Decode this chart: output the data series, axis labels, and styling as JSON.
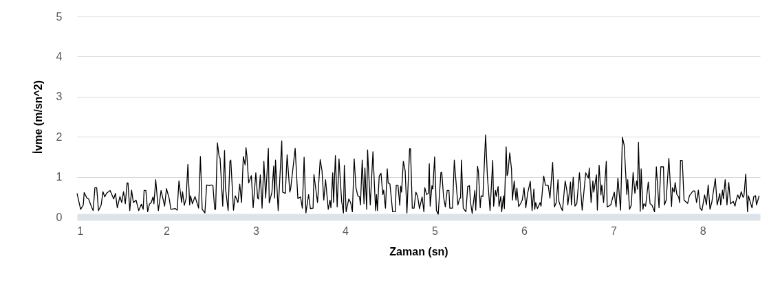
{
  "chart_data": {
    "type": "line",
    "xlabel": "Zaman (sn)",
    "ylabel": "İvme (m/sn^2)",
    "xlim": [
      1,
      8.64
    ],
    "xticks": [
      1,
      2,
      3,
      4,
      5,
      6,
      7,
      8
    ],
    "ylim": [
      0,
      5
    ],
    "yticks": [
      0,
      1,
      2,
      3,
      4,
      5
    ],
    "grid": "y",
    "legend": false,
    "series": [
      {
        "color": "#000000",
        "x": [
          1.0,
          1.04,
          1.07,
          1.08,
          1.11,
          1.13,
          1.15,
          1.18,
          1.2,
          1.22,
          1.24,
          1.27,
          1.29,
          1.31,
          1.33,
          1.37,
          1.41,
          1.43,
          1.45,
          1.48,
          1.5,
          1.52,
          1.54,
          1.56,
          1.57,
          1.59,
          1.61,
          1.63,
          1.66,
          1.69,
          1.72,
          1.74,
          1.75,
          1.77,
          1.79,
          1.81,
          1.83,
          1.85,
          1.86,
          1.88,
          1.91,
          1.94,
          1.98,
          2.0,
          2.03,
          2.05,
          2.1,
          2.12,
          2.14,
          2.17,
          2.18,
          2.2,
          2.22,
          2.24,
          2.26,
          2.27,
          2.29,
          2.32,
          2.36,
          2.38,
          2.4,
          2.43,
          2.45,
          2.48,
          2.5,
          2.52,
          2.54,
          2.55,
          2.57,
          2.59,
          2.6,
          2.63,
          2.65,
          2.66,
          2.69,
          2.71,
          2.72,
          2.75,
          2.77,
          2.8,
          2.82,
          2.84,
          2.86,
          2.88,
          2.89,
          2.9,
          2.92,
          2.95,
          2.97,
          3.0,
          3.02,
          3.03,
          3.05,
          3.07,
          3.09,
          3.11,
          3.14,
          3.15,
          3.18,
          3.2,
          3.21,
          3.22,
          3.25,
          3.29,
          3.3,
          3.33,
          3.35,
          3.38,
          3.39,
          3.44,
          3.47,
          3.5,
          3.52,
          3.54,
          3.56,
          3.59,
          3.61,
          3.64,
          3.65,
          3.69,
          3.72,
          3.74,
          3.76,
          3.78,
          3.81,
          3.83,
          3.84,
          3.86,
          3.87,
          3.89,
          3.91,
          3.93,
          3.96,
          3.98,
          3.99,
          4.01,
          4.04,
          4.06,
          4.08,
          4.1,
          4.12,
          4.14,
          4.16,
          4.17,
          4.19,
          4.21,
          4.22,
          4.24,
          4.25,
          4.28,
          4.31,
          4.33,
          4.34,
          4.35,
          4.36,
          4.38,
          4.4,
          4.42,
          4.43,
          4.45,
          4.47,
          4.48,
          4.5,
          4.53,
          4.56,
          4.57,
          4.59,
          4.61,
          4.62,
          4.63,
          4.65,
          4.67,
          4.69,
          4.72,
          4.73,
          4.75,
          4.77,
          4.79,
          4.81,
          4.83,
          4.86,
          4.88,
          4.89,
          4.91,
          4.93,
          4.94,
          4.95,
          4.97,
          4.98,
          5.0,
          5.02,
          5.04,
          5.07,
          5.08,
          5.1,
          5.12,
          5.14,
          5.16,
          5.17,
          5.2,
          5.22,
          5.23,
          5.26,
          5.28,
          5.29,
          5.3,
          5.32,
          5.35,
          5.37,
          5.39,
          5.4,
          5.42,
          5.45,
          5.46,
          5.48,
          5.49,
          5.51,
          5.52,
          5.54,
          5.57,
          5.59,
          5.62,
          5.65,
          5.66,
          5.68,
          5.69,
          5.71,
          5.72,
          5.74,
          5.75,
          5.77,
          5.78,
          5.8,
          5.81,
          5.82,
          5.84,
          5.86,
          5.87,
          5.89,
          5.91,
          5.92,
          5.94,
          5.96,
          5.98,
          6.0,
          6.02,
          6.04,
          6.07,
          6.09,
          6.11,
          6.12,
          6.13,
          6.15,
          6.18,
          6.19,
          6.22,
          6.24,
          6.27,
          6.29,
          6.32,
          6.34,
          6.36,
          6.38,
          6.39,
          6.41,
          6.43,
          6.46,
          6.48,
          6.49,
          6.52,
          6.53,
          6.55,
          6.57,
          6.59,
          6.62,
          6.65,
          6.69,
          6.72,
          6.73,
          6.75,
          6.77,
          6.78,
          6.81,
          6.82,
          6.84,
          6.86,
          6.87,
          6.89,
          6.92,
          6.93,
          6.97,
          6.98,
          7.01,
          7.02,
          7.03,
          7.05,
          7.08,
          7.1,
          7.12,
          7.15,
          7.16,
          7.18,
          7.2,
          7.22,
          7.24,
          7.26,
          7.27,
          7.28,
          7.3,
          7.31,
          7.33,
          7.34,
          7.36,
          7.39,
          7.41,
          7.43,
          7.46,
          7.48,
          7.51,
          7.53,
          7.56,
          7.57,
          7.59,
          7.62,
          7.65,
          7.66,
          7.68,
          7.69,
          7.71,
          7.73,
          7.74,
          7.75,
          7.77,
          7.79,
          7.83,
          7.85,
          7.89,
          7.91,
          7.93,
          7.95,
          7.97,
          7.99,
          8.02,
          8.04,
          8.06,
          8.08,
          8.1,
          8.14,
          8.16,
          8.19,
          8.2,
          8.22,
          8.23,
          8.25,
          8.27,
          8.29,
          8.31,
          8.34,
          8.36,
          8.37,
          8.39,
          8.41,
          8.43,
          8.45,
          8.46,
          8.48,
          8.5,
          8.51,
          8.54,
          8.55,
          8.57,
          8.59,
          8.6,
          8.63
        ],
        "values": [
          0.59,
          0.19,
          0.3,
          0.61,
          0.47,
          0.45,
          0.32,
          0.16,
          0.73,
          0.73,
          0.16,
          0.3,
          0.63,
          0.5,
          0.59,
          0.66,
          0.45,
          0.59,
          0.23,
          0.51,
          0.36,
          0.63,
          0.33,
          0.85,
          0.85,
          0.16,
          0.67,
          0.36,
          0.42,
          0.16,
          0.32,
          0.19,
          0.66,
          0.66,
          0.13,
          0.32,
          0.36,
          0.5,
          0.33,
          0.93,
          0.16,
          0.66,
          0.27,
          0.71,
          0.47,
          0.19,
          0.21,
          0.17,
          0.9,
          0.36,
          0.63,
          0.29,
          0.46,
          1.31,
          0.3,
          0.53,
          0.33,
          0.51,
          0.22,
          1.51,
          0.19,
          0.1,
          0.8,
          0.78,
          0.8,
          0.78,
          0.19,
          0.19,
          1.85,
          1.5,
          1.47,
          0.27,
          1.66,
          0.73,
          0.16,
          1.39,
          1.42,
          0.17,
          0.53,
          0.36,
          0.82,
          0.36,
          1.51,
          1.3,
          1.73,
          1.53,
          0.85,
          1.03,
          0.23,
          1.1,
          0.47,
          0.45,
          1.05,
          0.22,
          1.39,
          0.47,
          1.71,
          0.35,
          0.62,
          1.27,
          0.47,
          1.42,
          0.16,
          1.9,
          0.62,
          0.59,
          1.55,
          0.62,
          0.71,
          1.71,
          0.46,
          0.5,
          0.22,
          1.49,
          0.1,
          0.56,
          0.21,
          0.22,
          1.06,
          0.36,
          1.43,
          1.16,
          0.42,
          0.93,
          0.19,
          0.42,
          0.23,
          1.1,
          0.36,
          1.53,
          0.25,
          1.45,
          0.39,
          0.1,
          1.29,
          0.13,
          0.45,
          0.36,
          0.13,
          1.45,
          0.73,
          0.53,
          0.5,
          0.3,
          1.42,
          0.33,
          1.22,
          0.19,
          1.67,
          0.3,
          1.63,
          0.62,
          0.16,
          0.56,
          0.16,
          1.02,
          1.09,
          0.56,
          0.67,
          0.22,
          1.2,
          0.85,
          0.82,
          0.13,
          0.13,
          0.79,
          0.79,
          0.29,
          0.77,
          0.62,
          1.39,
          1.16,
          0.1,
          1.7,
          1.7,
          0.22,
          0.22,
          0.62,
          0.51,
          0.21,
          0.5,
          0.13,
          0.73,
          0.56,
          0.59,
          1.33,
          0.27,
          0.78,
          0.7,
          1.5,
          0.16,
          0.07,
          1.11,
          1.11,
          0.5,
          0.25,
          0.66,
          0.66,
          0.22,
          0.22,
          1.42,
          1.13,
          0.3,
          0.47,
          0.47,
          1.42,
          0.22,
          0.13,
          0.76,
          0.78,
          0.39,
          0.09,
          0.66,
          0.17,
          1.26,
          1.13,
          0.23,
          0.53,
          0.51,
          2.05,
          1.02,
          0.16,
          1.41,
          0.27,
          0.66,
          0.51,
          0.76,
          0.26,
          0.51,
          0.13,
          0.53,
          0.21,
          1.75,
          1.03,
          1.1,
          1.6,
          1.19,
          0.42,
          0.9,
          0.42,
          0.72,
          0.26,
          0.33,
          0.42,
          0.73,
          0.23,
          0.59,
          0.89,
          0.16,
          0.7,
          0.19,
          0.36,
          0.21,
          0.36,
          0.27,
          1.02,
          0.79,
          0.79,
          0.47,
          1.36,
          0.25,
          0.36,
          0.93,
          0.39,
          0.25,
          0.16,
          0.9,
          0.65,
          0.3,
          0.87,
          0.3,
          0.99,
          0.27,
          0.33,
          1.1,
          0.17,
          1.1,
          0.97,
          1.22,
          0.36,
          0.9,
          0.62,
          1.05,
          0.17,
          1.29,
          0.55,
          0.8,
          0.36,
          1.39,
          0.25,
          0.3,
          0.39,
          0.62,
          0.39,
          0.25,
          0.97,
          0.17,
          1.99,
          1.79,
          0.56,
          0.93,
          0.19,
          0.3,
          1.11,
          0.59,
          0.9,
          0.69,
          1.86,
          0.14,
          1.2,
          0.19,
          0.33,
          0.27,
          0.87,
          0.33,
          0.3,
          0.13,
          1.25,
          0.23,
          1.25,
          1.25,
          0.3,
          0.42,
          1.46,
          0.26,
          0.73,
          0.62,
          0.86,
          0.56,
          0.5,
          0.36,
          1.41,
          1.41,
          0.42,
          0.34,
          0.53,
          0.65,
          0.65,
          0.36,
          0.67,
          0.22,
          0.16,
          0.55,
          0.3,
          0.8,
          0.19,
          0.36,
          0.96,
          0.3,
          0.59,
          0.3,
          0.67,
          0.45,
          0.93,
          0.3,
          0.86,
          0.33,
          0.39,
          0.27,
          0.39,
          0.55,
          0.45,
          0.63,
          0.49,
          0.53,
          1.07,
          0.13,
          0.53,
          0.3,
          0.23,
          0.51,
          0.53,
          0.3,
          0.53
        ]
      }
    ]
  }
}
